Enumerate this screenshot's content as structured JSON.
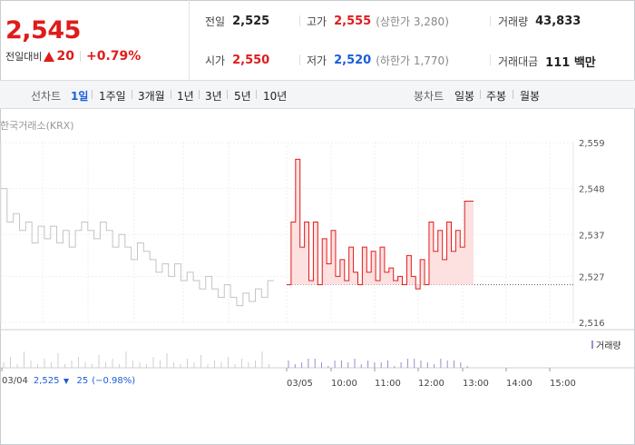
{
  "quote": {
    "price": "2,545",
    "change_label": "전일대비",
    "change_value": "20",
    "change_rate": "+0.79%"
  },
  "stats": {
    "prev_close": {
      "label": "전일",
      "value": "2,525"
    },
    "high": {
      "label": "고가",
      "value": "2,555",
      "sub": "(상한가 3,280)"
    },
    "volume": {
      "label": "거래량",
      "value": "43,833"
    },
    "open": {
      "label": "시가",
      "value": "2,550"
    },
    "low": {
      "label": "저가",
      "value": "2,520",
      "sub": "(하한가 1,770)"
    },
    "amount": {
      "label": "거래대금",
      "value": "111 백만"
    }
  },
  "tabs": {
    "line_label": "선차트",
    "line": [
      "1일",
      "1주일",
      "3개월",
      "1년",
      "3년",
      "5년",
      "10년"
    ],
    "line_active": 0,
    "candle_label": "봉차트",
    "candle": [
      "일봉",
      "주봉",
      "월봉"
    ]
  },
  "exchange": "한국거래소(KRX)",
  "volume_legend": "거래량",
  "footer": {
    "date": "03/04",
    "close": "2,525",
    "diff": "25",
    "rate": "(−0.98%)"
  },
  "colors": {
    "up": "#e01b1b",
    "down": "#1a5ed8",
    "prev_day_line": "#c4c4c4",
    "fill": "#fde0e0",
    "volume": "#9a8fd0"
  },
  "chart_data": {
    "type": "line",
    "y_ticks": [
      2516,
      2527,
      2537,
      2548,
      2559
    ],
    "y_tick_labels": [
      "2,516",
      "2,527",
      "2,537",
      "2,548",
      "2,559"
    ],
    "ylim": [
      2516,
      2559
    ],
    "x_tick_labels": [
      "03/04",
      "03/05",
      "10:00",
      "11:00",
      "12:00",
      "13:00",
      "14:00",
      "15:00"
    ],
    "reference_line": 2525,
    "series": [
      {
        "name": "03/04",
        "values": [
          2548,
          2540,
          2542,
          2538,
          2540,
          2535,
          2539,
          2536,
          2539,
          2535,
          2538,
          2534,
          2538,
          2540,
          2538,
          2536,
          2540,
          2538,
          2534,
          2537,
          2534,
          2531,
          2535,
          2533,
          2531,
          2528,
          2530,
          2527,
          2530,
          2526,
          2528,
          2526,
          2524,
          2527,
          2524,
          2522,
          2525,
          2522,
          2520,
          2523,
          2521,
          2524,
          2522,
          2526
        ]
      },
      {
        "name": "03/05",
        "values": [
          2525,
          2540,
          2555,
          2534,
          2540,
          2526,
          2540,
          2525,
          2536,
          2530,
          2538,
          2527,
          2531,
          2526,
          2534,
          2528,
          2525,
          2534,
          2528,
          2533,
          2526,
          2534,
          2528,
          2529,
          2526,
          2527,
          2525,
          2532,
          2527,
          2524,
          2531,
          2525,
          2540,
          2533,
          2538,
          2531,
          2540,
          2533,
          2538,
          2534,
          2545,
          2545
        ]
      }
    ]
  }
}
